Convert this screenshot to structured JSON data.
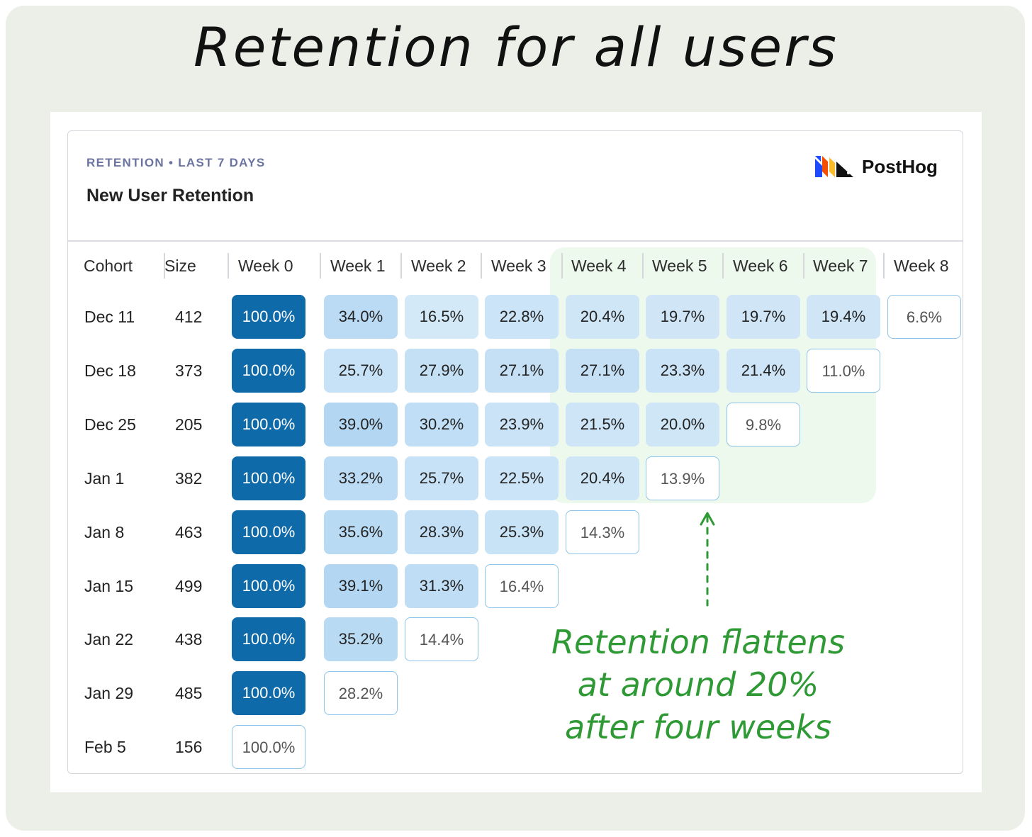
{
  "page_title": "Retention for all users",
  "card": {
    "subtitle": "RETENTION • LAST 7 DAYS",
    "title": "New User Retention",
    "brand": "PostHog"
  },
  "annotation": {
    "lines": [
      "Retention flattens",
      "at around 20%",
      "after four weeks"
    ],
    "color": "#2f9a35"
  },
  "colors": {
    "full": "#0f6aaa",
    "highlight_area": "#bfeabf",
    "partial_border": "#8cc3e8"
  },
  "chart_data": {
    "type": "heatmap",
    "title": "New User Retention",
    "columns": [
      "Cohort",
      "Size",
      "Week 0",
      "Week 1",
      "Week 2",
      "Week 3",
      "Week 4",
      "Week 5",
      "Week 6",
      "Week 7",
      "Week 8"
    ],
    "rows": [
      {
        "cohort": "Dec 11",
        "size": "412",
        "values": [
          "100.0%",
          "34.0%",
          "16.5%",
          "22.8%",
          "20.4%",
          "19.7%",
          "19.7%",
          "19.4%",
          "6.6%"
        ]
      },
      {
        "cohort": "Dec 18",
        "size": "373",
        "values": [
          "100.0%",
          "25.7%",
          "27.9%",
          "27.1%",
          "27.1%",
          "23.3%",
          "21.4%",
          "11.0%"
        ]
      },
      {
        "cohort": "Dec 25",
        "size": "205",
        "values": [
          "100.0%",
          "39.0%",
          "30.2%",
          "23.9%",
          "21.5%",
          "20.0%",
          "9.8%"
        ]
      },
      {
        "cohort": "Jan 1",
        "size": "382",
        "values": [
          "100.0%",
          "33.2%",
          "25.7%",
          "22.5%",
          "20.4%",
          "13.9%"
        ]
      },
      {
        "cohort": "Jan 8",
        "size": "463",
        "values": [
          "100.0%",
          "35.6%",
          "28.3%",
          "25.3%",
          "14.3%"
        ]
      },
      {
        "cohort": "Jan 15",
        "size": "499",
        "values": [
          "100.0%",
          "39.1%",
          "31.3%",
          "16.4%"
        ]
      },
      {
        "cohort": "Jan 22",
        "size": "438",
        "values": [
          "100.0%",
          "35.2%",
          "14.4%"
        ]
      },
      {
        "cohort": "Jan 29",
        "size": "485",
        "values": [
          "100.0%",
          "28.2%"
        ]
      },
      {
        "cohort": "Feb 5",
        "size": "156",
        "values": [
          "100.0%"
        ]
      }
    ],
    "highlighted_columns": [
      "Week 4",
      "Week 5",
      "Week 6",
      "Week 7"
    ]
  }
}
